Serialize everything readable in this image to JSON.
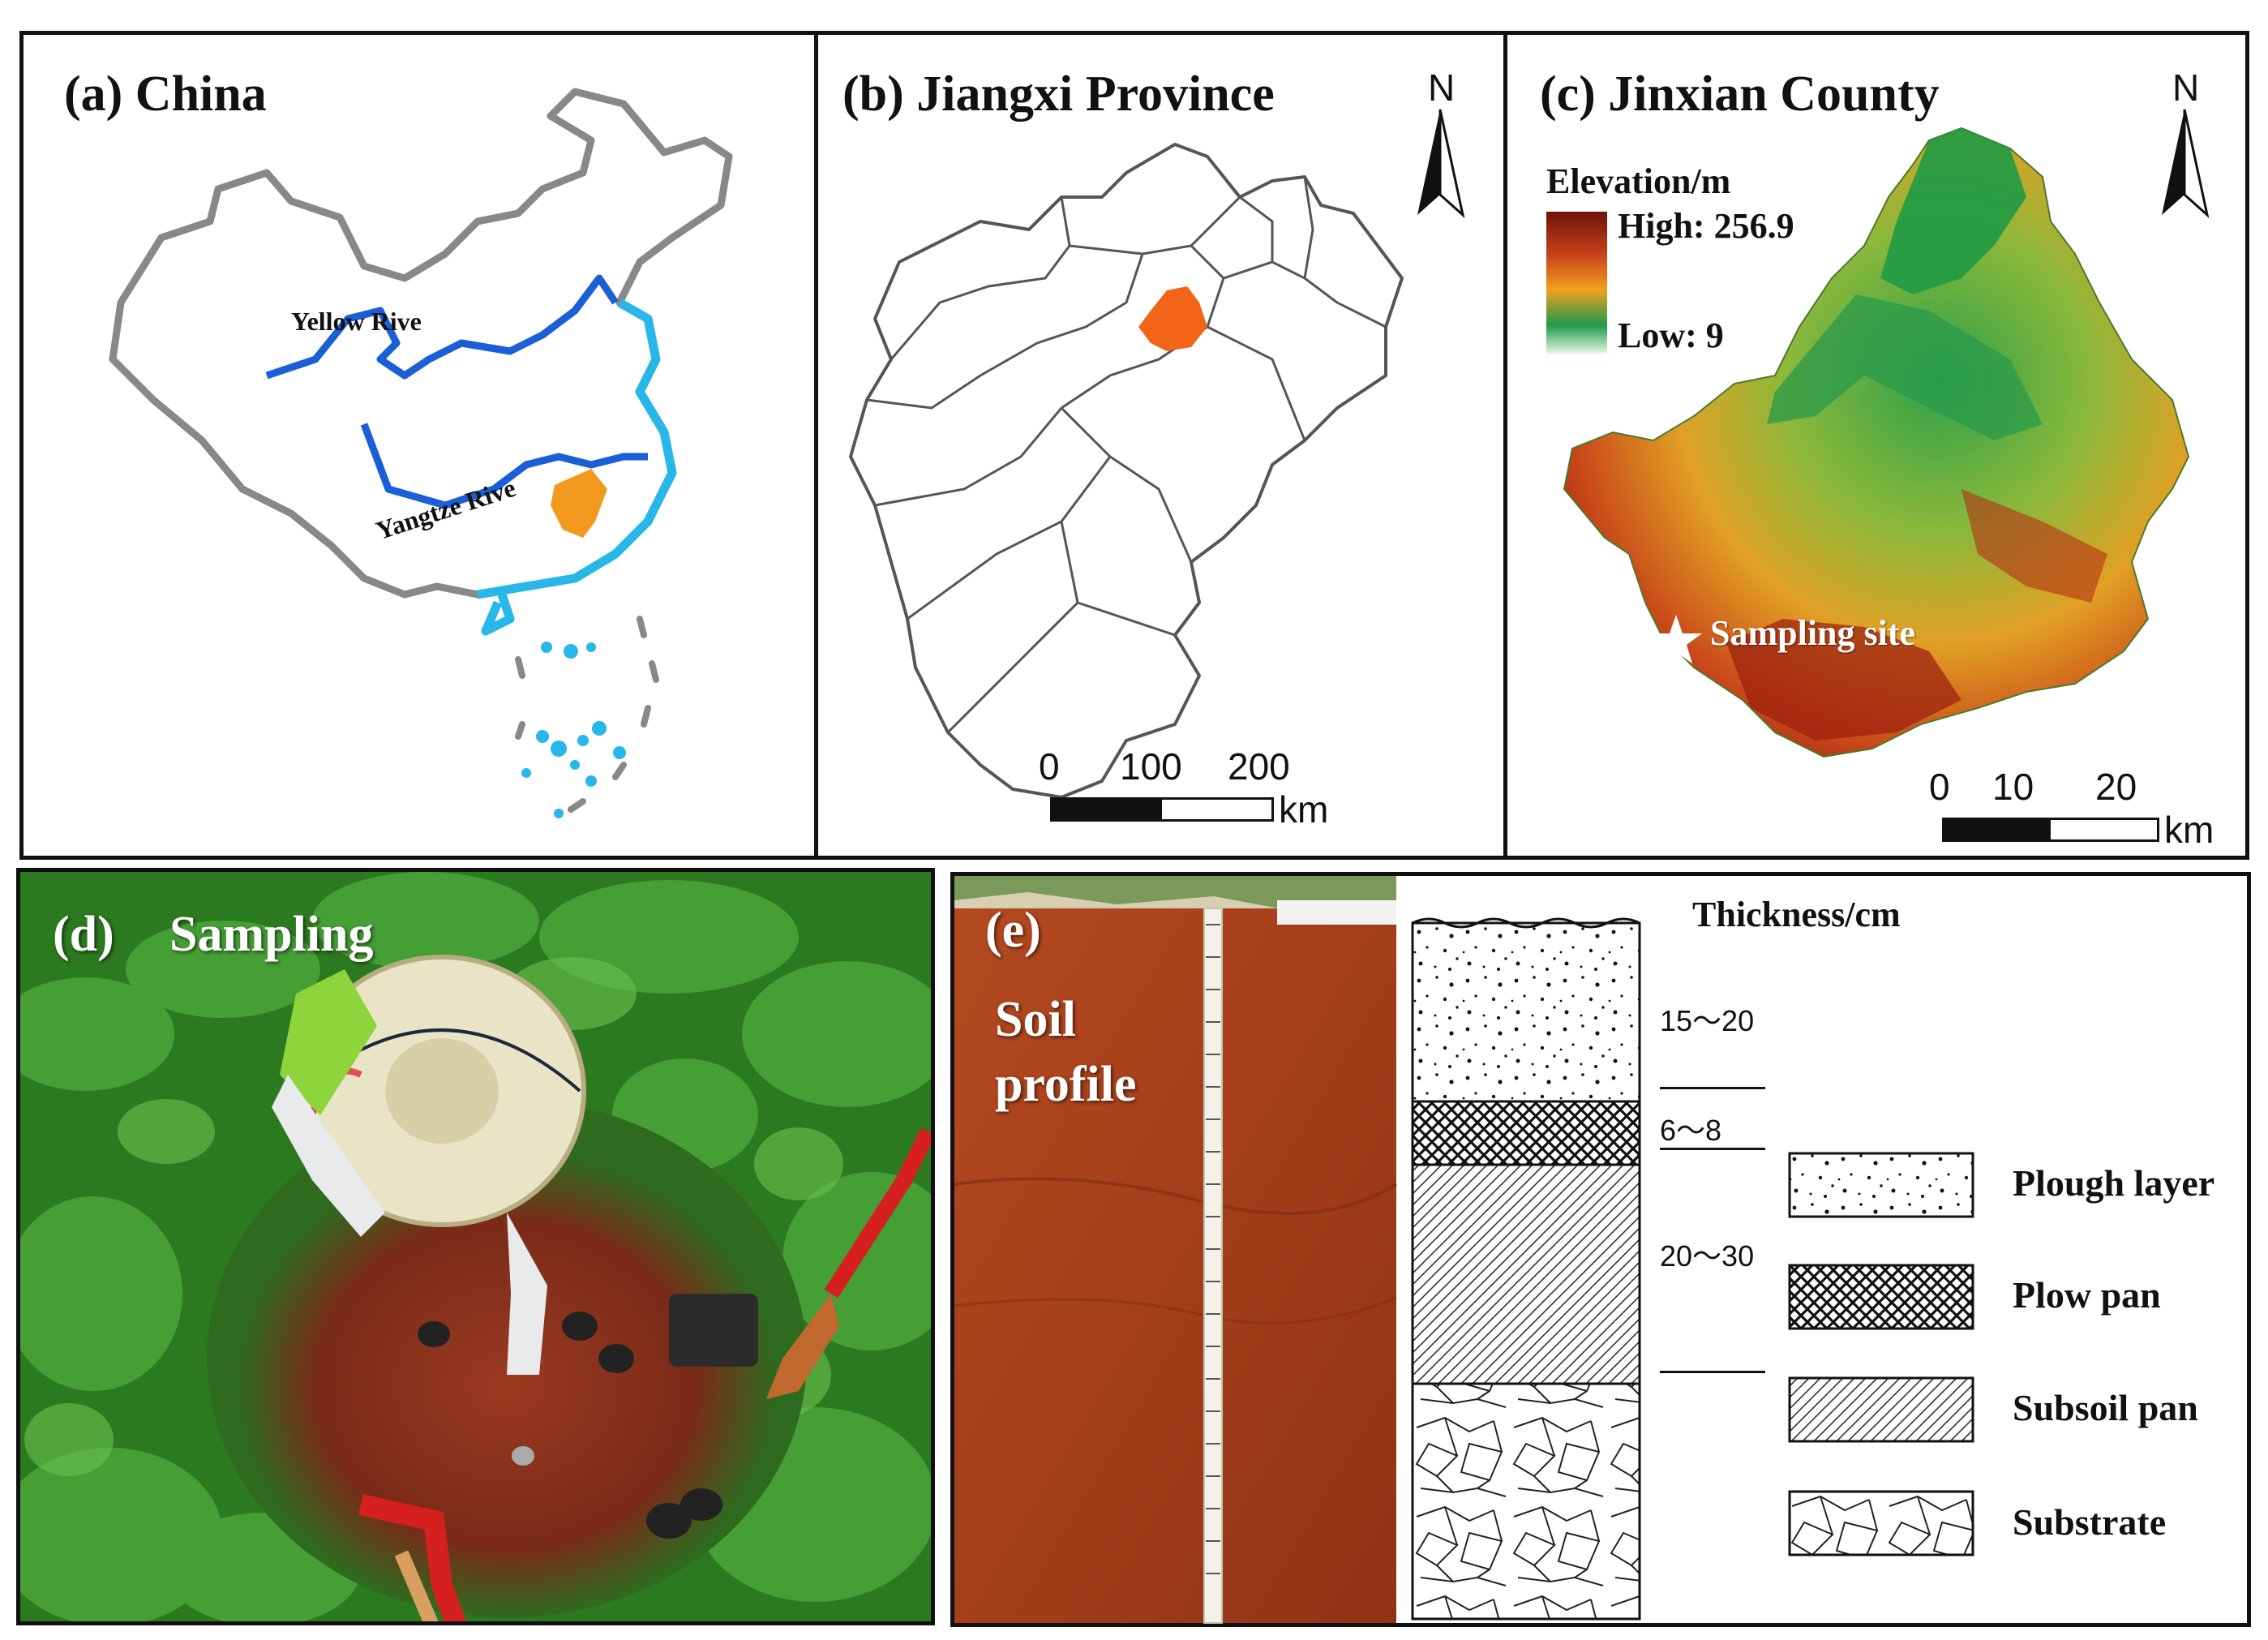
{
  "panel_a": {
    "title": "(a) China",
    "yellow_river": "Yellow Rive",
    "yangtze_river": "Yangtze Rive"
  },
  "panel_b": {
    "title": "(b) Jiangxi Province",
    "north": "N",
    "scale": {
      "ticks": [
        "0",
        "100",
        "200"
      ],
      "unit": "km"
    }
  },
  "panel_c": {
    "title": "(c) Jinxian County",
    "north": "N",
    "legend_title": "Elevation/m",
    "high_label": "High: 256.9",
    "low_label": "Low: 9",
    "site_label": "Sampling site",
    "scale": {
      "ticks": [
        "0",
        "10",
        "20"
      ],
      "unit": "km"
    }
  },
  "panel_d": {
    "title": "(d)",
    "subtitle": "Sampling"
  },
  "panel_e": {
    "title": "(e)",
    "photo_label_1": "Soil",
    "photo_label_2": "profile",
    "thickness_header": "Thickness/cm",
    "thicknesses": [
      "15～20",
      "6～8",
      "20～30"
    ],
    "legend": [
      "Plough layer",
      "Plow pan",
      "Subsoil pan",
      "Substrate"
    ]
  },
  "colors": {
    "river_blue": "#1a5fd6",
    "coast_cyan": "#29b6e8",
    "jiangxi_orange": "#f39a1e",
    "county_orange": "#f26418",
    "soil_red": "#a8401c",
    "elev_high": "#7a1a0e",
    "elev_low": "#1e9a4a"
  }
}
